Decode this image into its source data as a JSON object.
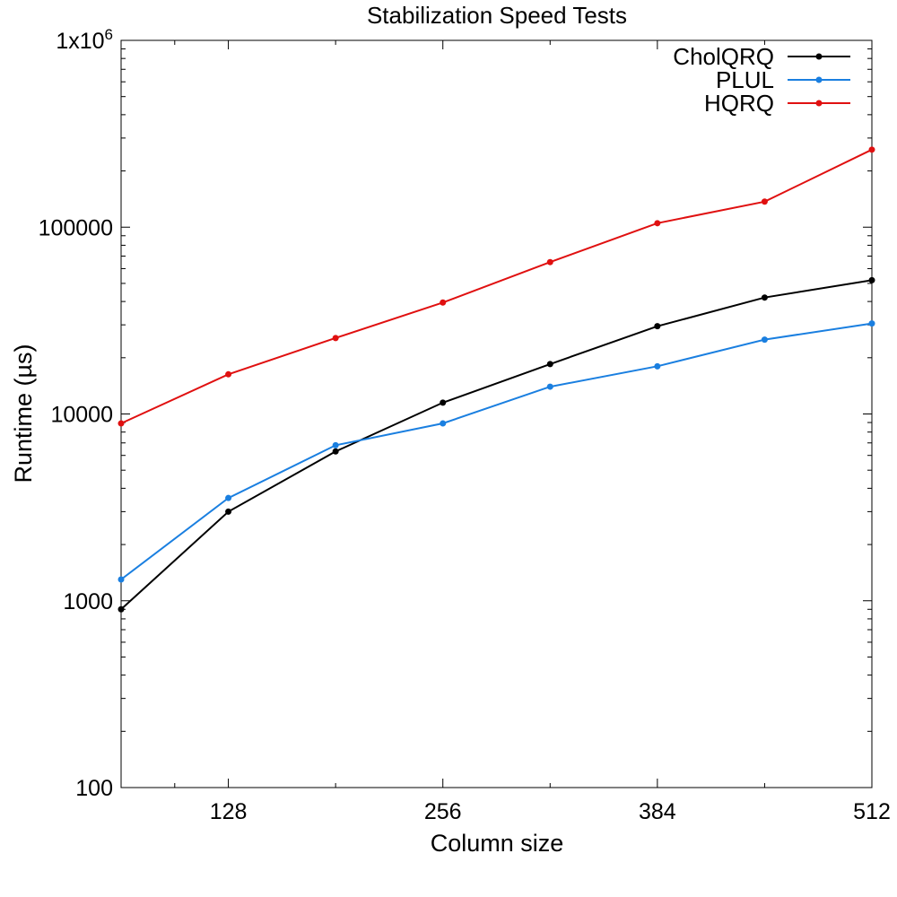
{
  "chart_data": {
    "type": "line",
    "title": "Stabilization Speed Tests",
    "xlabel": "Column size",
    "ylabel": "Runtime (µs)",
    "xlim": [
      64,
      512
    ],
    "ylim": [
      100,
      1000000
    ],
    "y_scale": "log",
    "x_ticks": [
      128,
      256,
      384,
      512
    ],
    "y_ticks": [
      {
        "value": 100,
        "label": "100"
      },
      {
        "value": 1000,
        "label": "1000"
      },
      {
        "value": 10000,
        "label": "10000"
      },
      {
        "value": 100000,
        "label": "100000"
      },
      {
        "value": 1000000,
        "label": "1x10",
        "sup": "6"
      }
    ],
    "grid": false,
    "legend_position": "top-right",
    "x": [
      64,
      128,
      192,
      256,
      320,
      384,
      448,
      512
    ],
    "series": [
      {
        "name": "CholQRQ",
        "color": "#000000",
        "values": [
          900,
          3000,
          6300,
          11500,
          18500,
          29500,
          42000,
          52000
        ]
      },
      {
        "name": "PLUL",
        "color": "#1a7fe0",
        "values": [
          1300,
          3550,
          6800,
          8900,
          14000,
          18000,
          25000,
          30500
        ]
      },
      {
        "name": "HQRQ",
        "color": "#e01010",
        "values": [
          8900,
          16300,
          25500,
          39500,
          65000,
          105000,
          137000,
          260000
        ]
      }
    ]
  }
}
